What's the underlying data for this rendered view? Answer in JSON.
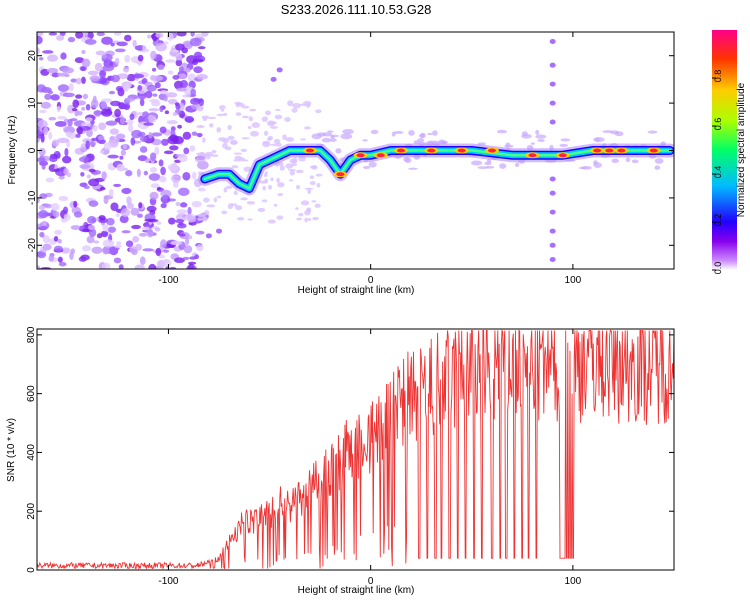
{
  "title": "S233.2026.111.10.53.G28",
  "chart_data": [
    {
      "type": "heatmap",
      "name": "spectrogram",
      "xlabel": "Height of straight line (km)",
      "ylabel": "Frequency (Hz)",
      "xlim": [
        -165,
        150
      ],
      "ylim": [
        -25,
        25
      ],
      "xticks": [
        -100,
        0,
        100
      ],
      "yticks": [
        -20,
        -10,
        0,
        10,
        20
      ],
      "colorbar": {
        "label": "Normalized spectral amplitude",
        "range": [
          0,
          1
        ],
        "ticks": [
          "0.0",
          "0.2",
          "0.4",
          "0.6",
          "0.8"
        ],
        "tick_values": [
          0,
          0.2,
          0.4,
          0.6,
          0.8
        ]
      },
      "noise_region_x": [
        -165,
        -82
      ],
      "main_trace": [
        {
          "x": -82,
          "y": -6
        },
        {
          "x": -75,
          "y": -5
        },
        {
          "x": -70,
          "y": -5
        },
        {
          "x": -65,
          "y": -7
        },
        {
          "x": -60,
          "y": -8
        },
        {
          "x": -55,
          "y": -3
        },
        {
          "x": -50,
          "y": -2
        },
        {
          "x": -45,
          "y": -1
        },
        {
          "x": -40,
          "y": 0
        },
        {
          "x": -30,
          "y": 0
        },
        {
          "x": -25,
          "y": 0
        },
        {
          "x": -20,
          "y": -2
        },
        {
          "x": -15,
          "y": -5
        },
        {
          "x": -10,
          "y": -2
        },
        {
          "x": -5,
          "y": -1
        },
        {
          "x": 0,
          "y": -1
        },
        {
          "x": 10,
          "y": 0
        },
        {
          "x": 30,
          "y": 0
        },
        {
          "x": 50,
          "y": 0
        },
        {
          "x": 70,
          "y": -1
        },
        {
          "x": 85,
          "y": -1
        },
        {
          "x": 95,
          "y": -1
        },
        {
          "x": 110,
          "y": 0
        },
        {
          "x": 130,
          "y": 0
        },
        {
          "x": 148,
          "y": 0
        }
      ],
      "outliers": [
        {
          "x": -80,
          "y": -18
        },
        {
          "x": -75,
          "y": -17
        },
        {
          "x": -45,
          "y": 17
        },
        {
          "x": -48,
          "y": 15
        },
        {
          "x": 90,
          "y": 23
        },
        {
          "x": 90,
          "y": 18
        },
        {
          "x": 90,
          "y": 14
        },
        {
          "x": 90,
          "y": 10
        },
        {
          "x": 90,
          "y": 6
        },
        {
          "x": 90,
          "y": -6
        },
        {
          "x": 90,
          "y": -9
        },
        {
          "x": 90,
          "y": -13
        },
        {
          "x": 90,
          "y": -17
        },
        {
          "x": 90,
          "y": -20
        },
        {
          "x": 90,
          "y": -23
        }
      ]
    },
    {
      "type": "line",
      "name": "snr",
      "xlabel": "Height of straight line (km)",
      "ylabel": "SNR (10 * v/v)",
      "xlim": [
        -165,
        150
      ],
      "ylim": [
        0,
        820
      ],
      "xticks": [
        -100,
        0,
        100
      ],
      "yticks": [
        0,
        200,
        400,
        600,
        800
      ],
      "color": "#ee3333",
      "envelope": [
        {
          "x": -165,
          "y": 15
        },
        {
          "x": -85,
          "y": 15
        },
        {
          "x": -75,
          "y": 40
        },
        {
          "x": -65,
          "y": 150
        },
        {
          "x": -55,
          "y": 180
        },
        {
          "x": -45,
          "y": 220
        },
        {
          "x": -35,
          "y": 240
        },
        {
          "x": -25,
          "y": 300
        },
        {
          "x": -15,
          "y": 380
        },
        {
          "x": -5,
          "y": 430
        },
        {
          "x": 5,
          "y": 480
        },
        {
          "x": 15,
          "y": 560
        },
        {
          "x": 30,
          "y": 620
        },
        {
          "x": 50,
          "y": 680
        },
        {
          "x": 70,
          "y": 700
        },
        {
          "x": 90,
          "y": 690
        },
        {
          "x": 110,
          "y": 720
        },
        {
          "x": 130,
          "y": 700
        },
        {
          "x": 150,
          "y": 710
        }
      ],
      "dropouts": [
        {
          "x": 24,
          "y": 40
        },
        {
          "x": 28,
          "y": 40
        },
        {
          "x": 32,
          "y": 40
        },
        {
          "x": 35,
          "y": 40
        },
        {
          "x": 39,
          "y": 40
        },
        {
          "x": 43,
          "y": 40
        },
        {
          "x": 47,
          "y": 40
        },
        {
          "x": 51,
          "y": 40
        },
        {
          "x": 55,
          "y": 40
        },
        {
          "x": 60,
          "y": 40
        },
        {
          "x": 64,
          "y": 40
        },
        {
          "x": 67,
          "y": 40
        },
        {
          "x": 71,
          "y": 40
        },
        {
          "x": 75,
          "y": 40
        },
        {
          "x": 78,
          "y": 40
        },
        {
          "x": 82,
          "y": 40
        },
        {
          "x": 94,
          "y": 40
        },
        {
          "x": 95,
          "y": 40
        },
        {
          "x": 96,
          "y": 40
        },
        {
          "x": 97,
          "y": 40
        },
        {
          "x": 98,
          "y": 40
        },
        {
          "x": 99,
          "y": 40
        },
        {
          "x": 100,
          "y": 40
        }
      ]
    }
  ]
}
